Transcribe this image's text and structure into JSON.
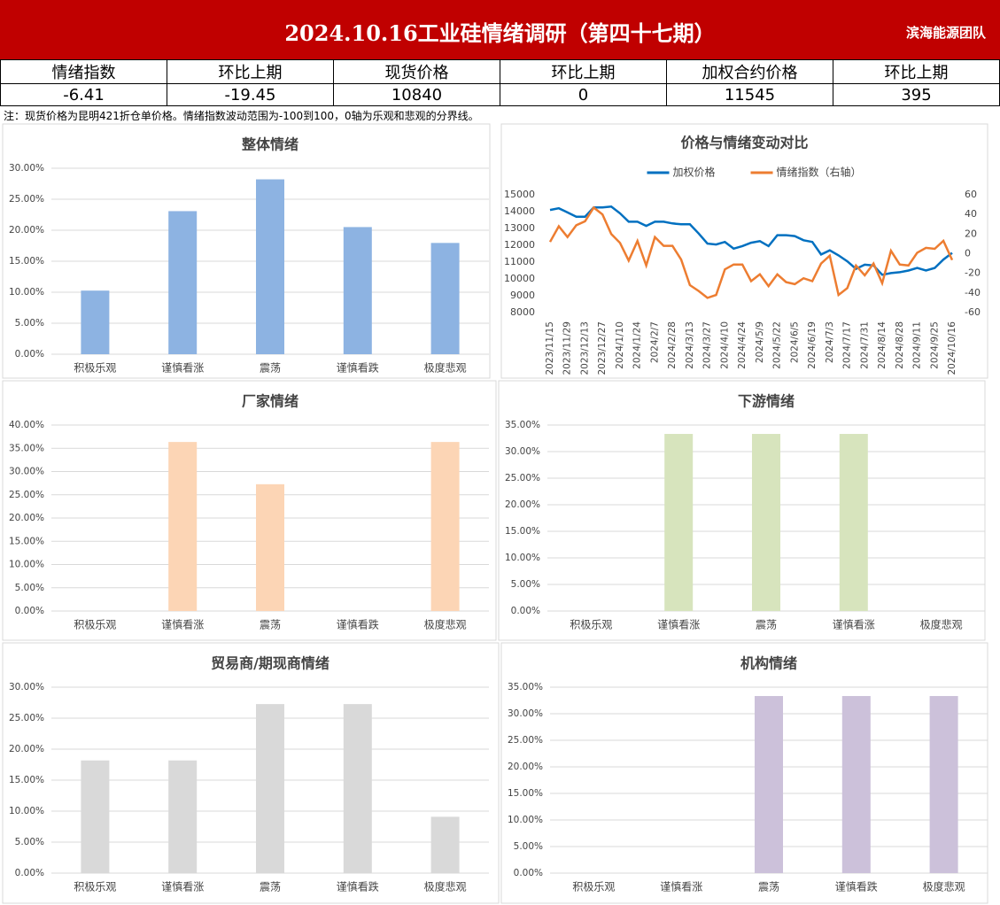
{
  "header": {
    "title": "2024.10.16工业硅情绪调研（第四十七期）",
    "team": "滨海能源团队"
  },
  "table": {
    "headers": [
      "情绪指数",
      "环比上期",
      "现货价格",
      "环比上期",
      "加权合约价格",
      "环比上期"
    ],
    "rows": [
      [
        -6.41,
        -19.45,
        10840,
        0,
        11545,
        395
      ]
    ]
  },
  "note": "注：现货价格为昆明421折仓单价格。情绪指数波动范围为-100到100，0轴为乐观和悲观的分界线。",
  "chart_data": [
    {
      "type": "bar",
      "title": "整体情绪",
      "categories": [
        "积极乐观",
        "谨慎看涨",
        "震荡",
        "谨慎看跌",
        "极度悲观"
      ],
      "values": [
        10.26,
        23.08,
        28.21,
        20.51,
        17.95
      ],
      "color": "#8db3e2",
      "ylim": [
        0,
        30
      ],
      "yticks": [
        {
          "value": 0,
          "label": "0.00%"
        },
        {
          "value": 5,
          "label": "5.00%"
        },
        {
          "value": 10,
          "label": "10.00%"
        },
        {
          "value": 15,
          "label": "15.00%"
        },
        {
          "value": 20,
          "label": "20.00%"
        },
        {
          "value": 25,
          "label": "25.00%"
        },
        {
          "value": 30,
          "label": "30.00%"
        }
      ],
      "grid": true
    },
    {
      "type": "line",
      "title": "价格与情绪变动对比",
      "legend": "top",
      "categories": [
        "2023/11/15",
        null,
        "2023/11/29",
        null,
        "2023/12/13",
        null,
        "2023/12/27",
        null,
        "2024/1/10",
        null,
        "2024/1/24",
        null,
        "2024/2/7",
        null,
        "2024/2/28",
        null,
        "2024/3/13",
        null,
        "2024/3/27",
        null,
        "2024/4/10",
        null,
        "2024/4/24",
        null,
        "2024/5/9",
        null,
        "2024/5/22",
        null,
        "2024/6/5",
        null,
        "2024/6/19",
        null,
        "2024/7/3",
        null,
        "2024/7/17",
        null,
        "2024/7/31",
        null,
        "2024/8/14",
        null,
        "2024/8/28",
        null,
        "2024/9/11",
        null,
        "2024/9/25",
        null,
        "2024/10/16"
      ],
      "series": [
        {
          "name": "加权价格",
          "color": "#0070c0",
          "values": [
            14100,
            14200,
            13950,
            13700,
            13700,
            14250,
            14250,
            14300,
            13900,
            13400,
            13400,
            13150,
            13400,
            13400,
            13300,
            13250,
            13250,
            12700,
            12100,
            12050,
            12200,
            11800,
            11950,
            12150,
            12250,
            11950,
            12600,
            12600,
            12550,
            12300,
            12200,
            11450,
            11700,
            11400,
            11050,
            10600,
            10850,
            10800,
            10250,
            10350,
            10400,
            10500,
            10650,
            10500,
            10650,
            11150,
            11545
          ]
        },
        {
          "name": "情绪指数（右轴）",
          "color": "#ed7d31",
          "axis": "y2",
          "values": [
            12,
            28,
            17,
            29,
            33,
            47,
            40,
            20,
            11,
            -7,
            13,
            -12,
            17,
            8,
            8,
            -6,
            -32,
            -38,
            -45,
            -42,
            -16,
            -11,
            -11,
            -28,
            -21,
            -33,
            -21,
            -29,
            -31,
            -25,
            -28,
            -10,
            -2,
            -42,
            -35,
            -12,
            -22,
            -10,
            -30,
            3,
            -11,
            -12,
            1,
            6,
            5,
            13.04,
            -6.41
          ]
        }
      ],
      "ylim": [
        8000,
        15000
      ],
      "yticks": [
        8000,
        9000,
        10000,
        11000,
        12000,
        13000,
        14000,
        15000
      ],
      "y2lim": [
        -60,
        60
      ],
      "y2ticks": [
        -60,
        -40,
        -20,
        0,
        20,
        40,
        60
      ],
      "grid": false
    },
    {
      "type": "bar",
      "title": "厂家情绪",
      "categories": [
        "积极乐观",
        "谨慎看涨",
        "震荡",
        "谨慎看跌",
        "极度悲观"
      ],
      "values": [
        0,
        36.36,
        27.27,
        0,
        36.36
      ],
      "color": "#fcd5b5",
      "ylim": [
        0,
        40
      ],
      "yticks": [
        {
          "value": 0,
          "label": "0.00%"
        },
        {
          "value": 5,
          "label": "5.00%"
        },
        {
          "value": 10,
          "label": "10.00%"
        },
        {
          "value": 15,
          "label": "15.00%"
        },
        {
          "value": 20,
          "label": "20.00%"
        },
        {
          "value": 25,
          "label": "25.00%"
        },
        {
          "value": 30,
          "label": "30.00%"
        },
        {
          "value": 35,
          "label": "35.00%"
        },
        {
          "value": 40,
          "label": "40.00%"
        }
      ],
      "grid": true
    },
    {
      "type": "bar",
      "title": "下游情绪",
      "categories": [
        "积极乐观",
        "谨慎看涨",
        "震荡",
        "谨慎看涨",
        "极度悲观"
      ],
      "values": [
        0,
        33.33,
        33.33,
        33.33,
        0
      ],
      "color": "#d7e4bd",
      "ylim": [
        0,
        35
      ],
      "yticks": [
        {
          "value": 0,
          "label": "0.00%"
        },
        {
          "value": 5,
          "label": "5.00%"
        },
        {
          "value": 10,
          "label": "10.00%"
        },
        {
          "value": 15,
          "label": "15.00%"
        },
        {
          "value": 20,
          "label": "20.00%"
        },
        {
          "value": 25,
          "label": "25.00%"
        },
        {
          "value": 30,
          "label": "30.00%"
        },
        {
          "value": 35,
          "label": "35.00%"
        }
      ],
      "grid": true
    },
    {
      "type": "bar",
      "title": "贸易商/期现商情绪",
      "categories": [
        "积极乐观",
        "谨慎看涨",
        "震荡",
        "谨慎看跌",
        "极度悲观"
      ],
      "values": [
        18.18,
        18.18,
        27.27,
        27.27,
        9.09
      ],
      "color": "#d9d9d9",
      "ylim": [
        0,
        30
      ],
      "yticks": [
        {
          "value": 0,
          "label": "0.00%"
        },
        {
          "value": 5,
          "label": "5.00%"
        },
        {
          "value": 10,
          "label": "10.00%"
        },
        {
          "value": 15,
          "label": "15.00%"
        },
        {
          "value": 20,
          "label": "20.00%"
        },
        {
          "value": 25,
          "label": "25.00%"
        },
        {
          "value": 30,
          "label": "30.00%"
        }
      ],
      "grid": true
    },
    {
      "type": "bar",
      "title": "机构情绪",
      "categories": [
        "积极乐观",
        "谨慎看涨",
        "震荡",
        "谨慎看跌",
        "极度悲观"
      ],
      "values": [
        0,
        0,
        33.33,
        33.33,
        33.33
      ],
      "color": "#ccc1da",
      "ylim": [
        0,
        35
      ],
      "yticks": [
        {
          "value": 0,
          "label": "0.00%"
        },
        {
          "value": 5,
          "label": "5.00%"
        },
        {
          "value": 10,
          "label": "10.00%"
        },
        {
          "value": 15,
          "label": "15.00%"
        },
        {
          "value": 20,
          "label": "20.00%"
        },
        {
          "value": 25,
          "label": "25.00%"
        },
        {
          "value": 30,
          "label": "30.00%"
        },
        {
          "value": 35,
          "label": "35.00%"
        }
      ],
      "grid": true
    }
  ]
}
